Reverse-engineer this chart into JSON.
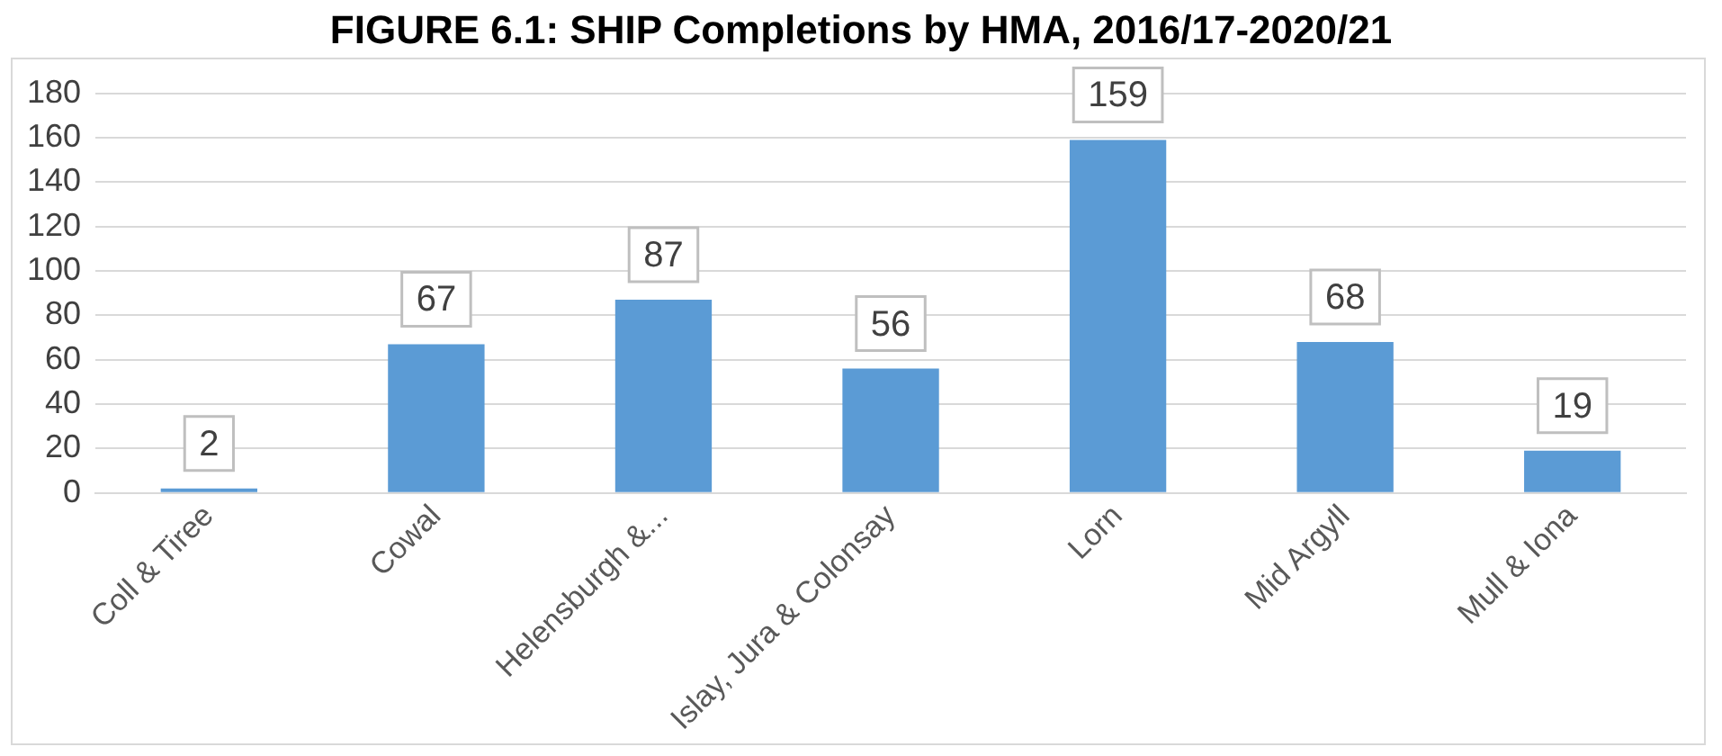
{
  "chart_data": {
    "type": "bar",
    "title": "FIGURE 6.1: SHIP Completions by HMA, 2016/17-2020/21",
    "categories": [
      "Coll & Tiree",
      "Cowal",
      "Helensburgh &...",
      "Islay, Jura & Colonsay",
      "Lorn",
      "Mid Argyll",
      "Mull & Iona"
    ],
    "values": [
      2,
      67,
      87,
      56,
      159,
      68,
      19
    ],
    "color": "#5b9bd5",
    "ylim": [
      0,
      180
    ],
    "yticks": [
      0,
      20,
      40,
      60,
      80,
      100,
      120,
      140,
      160,
      180
    ],
    "grid": "y",
    "data_labels": true,
    "legend": false
  }
}
